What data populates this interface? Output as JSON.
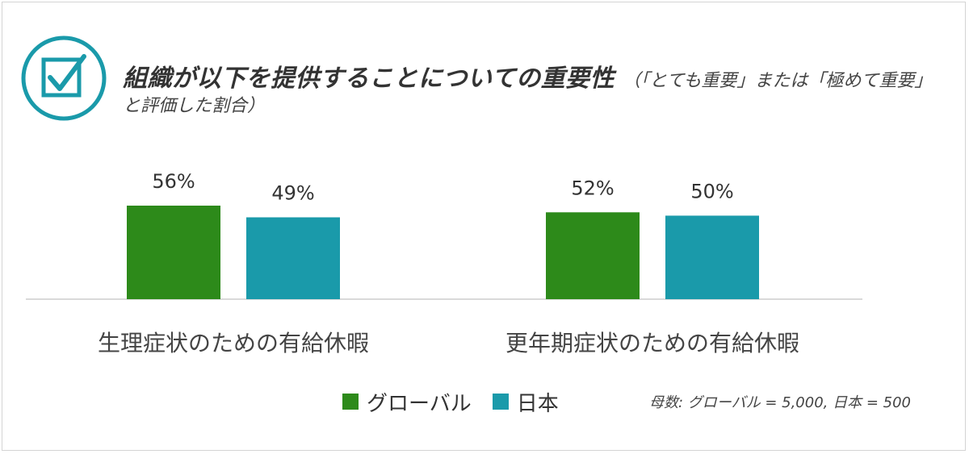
{
  "title": "組織が以下を提供することについての重要性",
  "subtitle": "（「とても重要」または「極めて重要」",
  "subtitle_2": "と評価した割合）",
  "sample_note": "母数: グローバル = 5,000, 日本 = 500",
  "icon": "checkbox-check-icon",
  "colors": {
    "global": "#2d8a1a",
    "japan": "#1a9aaa",
    "icon": "#1a9aaa",
    "axis": "#d9d9d9"
  },
  "chart_data": {
    "type": "bar",
    "categories": [
      "生理症状のための有給休暇",
      "更年期症状のための有給休暇"
    ],
    "series": [
      {
        "name": "グローバル",
        "values": [
          56,
          52
        ],
        "labels": [
          "56%",
          "52%"
        ]
      },
      {
        "name": "日本",
        "values": [
          49,
          50
        ],
        "labels": [
          "49%",
          "50%"
        ]
      }
    ],
    "unit": "%",
    "ylim": [
      0,
      60
    ],
    "grid": false,
    "legend_position": "bottom"
  }
}
